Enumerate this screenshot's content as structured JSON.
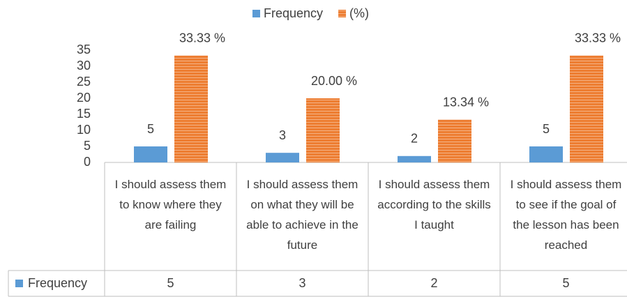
{
  "chart_data": {
    "type": "bar",
    "categories": [
      "I should assess them to know where they are failing",
      "I should assess them on what they will be able to achieve in the future",
      "I should assess them according to the skills I taught",
      "I should assess them to see if the goal of the lesson has been reached"
    ],
    "series": [
      {
        "name": "Frequency",
        "color": "#5b9bd5",
        "values": [
          5,
          3,
          2,
          5
        ]
      },
      {
        "name": "(%)",
        "color": "#ed7d31",
        "values": [
          33.33,
          20,
          13.34,
          33.33
        ],
        "value_labels": [
          "33.33 %",
          "20.00 %",
          "13.34 %",
          "33.33 %"
        ]
      }
    ],
    "ylim": [
      0,
      35
    ],
    "yticks": [
      0,
      5,
      10,
      15,
      20,
      25,
      30,
      35
    ],
    "legend": "top",
    "data_table": true
  }
}
